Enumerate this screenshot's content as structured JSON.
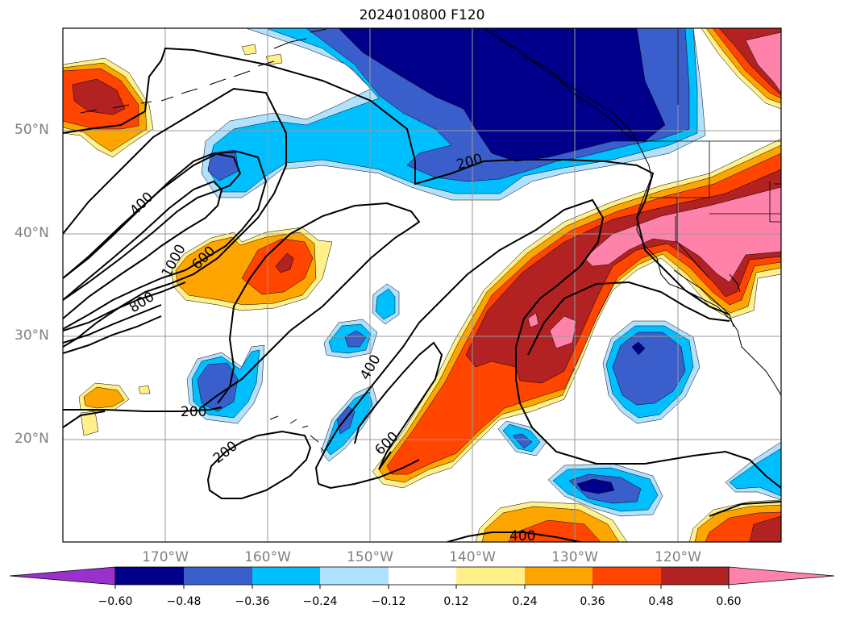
{
  "title": "2024010800 F120",
  "map": {
    "lat_labels": [
      "50°N",
      "40°N",
      "30°N",
      "20°N"
    ],
    "lon_labels": [
      "170°W",
      "160°W",
      "150°W",
      "140°W",
      "130°W",
      "120°W"
    ],
    "contour_labels": [
      "400",
      "1000",
      "600",
      "800",
      "200",
      "200",
      "200",
      "400",
      "600",
      "400"
    ]
  },
  "colorbar": {
    "labels": [
      "−0.60",
      "−0.48",
      "−0.36",
      "−0.24",
      "−0.12",
      "0.12",
      "0.24",
      "0.36",
      "0.48",
      "0.60"
    ],
    "colors": [
      "#9932cc",
      "#00008b",
      "#3a5fcd",
      "#00bfff",
      "#b0e2ff",
      "#ffffff",
      "#fff08a",
      "#ffa500",
      "#ff4500",
      "#b22222",
      "#ff82ab"
    ]
  }
}
